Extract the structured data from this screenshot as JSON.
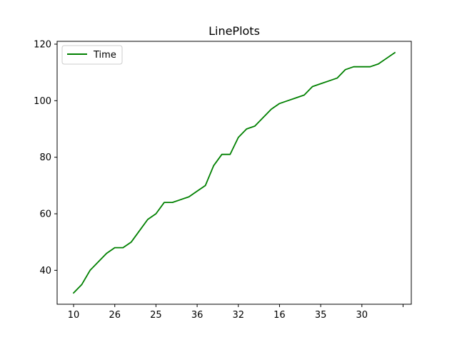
{
  "chart_data": {
    "type": "line",
    "title": "LinePlots",
    "xlabel": "",
    "ylabel": "",
    "x_tick_labels": [
      "10",
      "26",
      "25",
      "36",
      "32",
      "16",
      "35",
      "30",
      ""
    ],
    "x_tick_positions": [
      0,
      5,
      10,
      15,
      20,
      25,
      30,
      35,
      40
    ],
    "xlim": [
      -2,
      41
    ],
    "ylim": [
      28,
      121
    ],
    "y_ticks": [
      40,
      60,
      80,
      100,
      120
    ],
    "legend": "upper-left",
    "grid": false,
    "series": [
      {
        "name": "Time",
        "color": "#008000",
        "x": [
          0,
          1,
          2,
          3,
          4,
          5,
          6,
          7,
          8,
          9,
          10,
          11,
          12,
          13,
          14,
          15,
          16,
          17,
          18,
          19,
          20,
          21,
          22,
          23,
          24,
          25,
          26,
          27,
          28,
          29,
          30,
          31,
          32,
          33,
          34,
          35,
          36,
          37,
          38,
          39,
          40
        ],
        "y": [
          32,
          35,
          40,
          43,
          46,
          48,
          48,
          50,
          54,
          58,
          60,
          64,
          64,
          65,
          66,
          68,
          70,
          77,
          81,
          81,
          87,
          90,
          91,
          94,
          97,
          99,
          100,
          101,
          102,
          105,
          106,
          107,
          108,
          111,
          112,
          112,
          112,
          113,
          115,
          117,
          null
        ]
      }
    ]
  }
}
